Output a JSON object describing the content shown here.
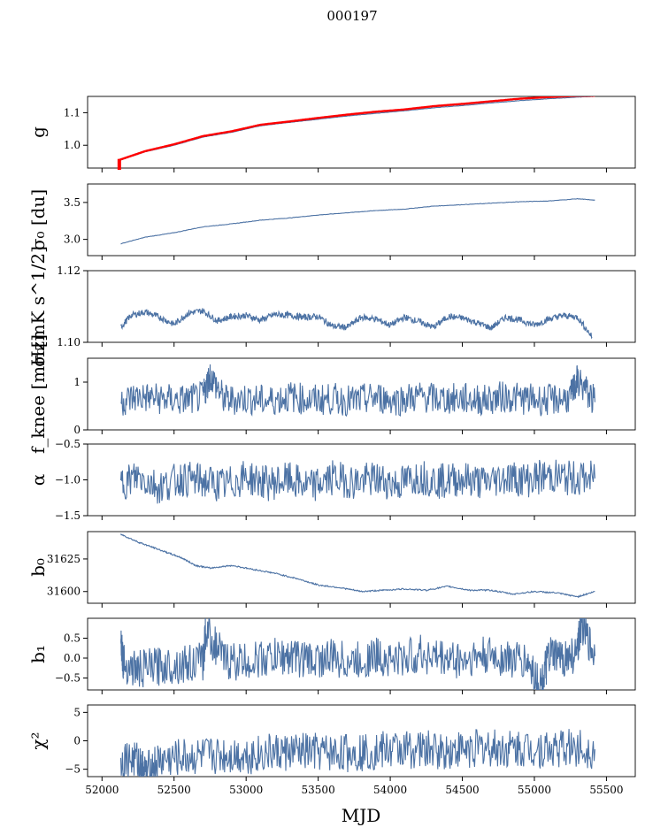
{
  "figure": {
    "suptitle": "000197",
    "xlabel": "MJD",
    "series_color": "#4c72a4",
    "highlight_color": "#ff0000"
  },
  "chart_data": [
    {
      "type": "line",
      "ylabel": "g",
      "xlim": [
        51900,
        55700
      ],
      "ylim": [
        0.93,
        1.15
      ],
      "yticks": [
        1.0,
        1.1
      ],
      "ytick_labels": [
        "1.0",
        "1.1"
      ],
      "series": [
        {
          "values_x": [
            52130,
            52300,
            52500,
            52700,
            52900,
            53100,
            53300,
            53500,
            53700,
            53900,
            54100,
            54300,
            54500,
            54700,
            54900,
            55100,
            55300,
            55420
          ],
          "values_y": [
            0.955,
            0.98,
            1.0,
            1.025,
            1.04,
            1.06,
            1.07,
            1.08,
            1.09,
            1.098,
            1.106,
            1.115,
            1.122,
            1.13,
            1.137,
            1.143,
            1.148,
            1.15
          ]
        },
        {
          "name": "",
          "color": "#ff0000",
          "values_x": [
            52120,
            52300,
            52500,
            52700,
            52900,
            53100,
            53300,
            53500,
            53700,
            53900,
            54100,
            54300,
            54500,
            54700,
            54900,
            55100,
            55300,
            55420
          ],
          "values_y": [
            0.955,
            0.982,
            1.003,
            1.028,
            1.043,
            1.063,
            1.073,
            1.084,
            1.094,
            1.103,
            1.11,
            1.12,
            1.127,
            1.135,
            1.143,
            1.148,
            1.152,
            1.152
          ]
        }
      ]
    },
    {
      "type": "line",
      "ylabel": "σ₀ [du]",
      "xlim": [
        51900,
        55700
      ],
      "ylim": [
        2.78,
        3.75
      ],
      "yticks": [
        3.0,
        3.5
      ],
      "ytick_labels": [
        "3.0",
        "3.5"
      ],
      "series": [
        {
          "values_x": [
            52130,
            52300,
            52500,
            52700,
            52900,
            53100,
            53300,
            53500,
            53700,
            53900,
            54100,
            54300,
            54500,
            54700,
            54900,
            55100,
            55300,
            55420
          ],
          "values_y": [
            2.94,
            3.03,
            3.09,
            3.17,
            3.21,
            3.26,
            3.29,
            3.33,
            3.36,
            3.39,
            3.41,
            3.45,
            3.47,
            3.49,
            3.51,
            3.52,
            3.55,
            3.53
          ]
        }
      ]
    },
    {
      "type": "line",
      "ylabel": "σ₀[mK s^1/2]",
      "xlim": [
        51900,
        55700
      ],
      "ylim": [
        1.1,
        1.12
      ],
      "yticks": [
        1.1,
        1.12
      ],
      "ytick_labels": [
        "1.10",
        "1.12"
      ],
      "series": [
        {
          "values_x": [
            52130,
            52200,
            52300,
            52400,
            52500,
            52600,
            52700,
            52800,
            52900,
            53000,
            53100,
            53200,
            53300,
            53400,
            53500,
            53600,
            53700,
            53800,
            53900,
            54000,
            54100,
            54200,
            54300,
            54400,
            54500,
            54600,
            54700,
            54800,
            54900,
            55000,
            55100,
            55200,
            55300,
            55400
          ],
          "values_y": [
            1.1042,
            1.1075,
            1.1085,
            1.107,
            1.105,
            1.1082,
            1.1088,
            1.106,
            1.1072,
            1.1075,
            1.1062,
            1.1078,
            1.1075,
            1.107,
            1.1072,
            1.1045,
            1.1042,
            1.107,
            1.1065,
            1.1048,
            1.107,
            1.1058,
            1.1042,
            1.1072,
            1.1068,
            1.1055,
            1.104,
            1.107,
            1.1062,
            1.1048,
            1.1065,
            1.1075,
            1.107,
            1.1015
          ]
        }
      ]
    },
    {
      "type": "line",
      "ylabel": "f_knee [mHz]",
      "xlim": [
        51900,
        55700
      ],
      "ylim": [
        0,
        1.5
      ],
      "yticks": [
        0,
        1
      ],
      "ytick_labels": [
        "0",
        "1"
      ],
      "series": [
        {
          "values_x": [
            52130,
            52250,
            52400,
            52550,
            52700,
            52750,
            52850,
            53000,
            53150,
            53300,
            53450,
            53600,
            53750,
            53900,
            54050,
            54200,
            54350,
            54500,
            54650,
            54800,
            54950,
            55100,
            55250,
            55300,
            55420
          ],
          "values_y": [
            0.6,
            0.7,
            0.65,
            0.62,
            0.68,
            1.15,
            0.62,
            0.66,
            0.6,
            0.7,
            0.62,
            0.65,
            0.6,
            0.68,
            0.62,
            0.7,
            0.64,
            0.66,
            0.62,
            0.7,
            0.64,
            0.62,
            0.68,
            1.05,
            0.58
          ]
        }
      ]
    },
    {
      "type": "line",
      "ylabel": "α",
      "xlim": [
        51900,
        55700
      ],
      "ylim": [
        -1.5,
        -0.5
      ],
      "yticks": [
        -1.5,
        -1.0,
        -0.5
      ],
      "ytick_labels": [
        "−1.5",
        "−1.0",
        "−0.5"
      ],
      "series": [
        {
          "values_x": [
            52130,
            52250,
            52400,
            52550,
            52700,
            52850,
            53000,
            53150,
            53300,
            53450,
            53600,
            53750,
            53900,
            54050,
            54200,
            54350,
            54500,
            54650,
            54800,
            54950,
            55100,
            55250,
            55420
          ],
          "values_y": [
            -1.05,
            -0.95,
            -1.1,
            -0.98,
            -1.02,
            -1.08,
            -0.96,
            -1.05,
            -1.0,
            -1.1,
            -0.97,
            -1.03,
            -0.99,
            -1.06,
            -0.95,
            -1.02,
            -0.98,
            -1.04,
            -0.96,
            -1.0,
            -0.94,
            -0.98,
            -0.98
          ]
        }
      ]
    },
    {
      "type": "line",
      "ylabel": "b₀",
      "xlim": [
        51900,
        55700
      ],
      "ylim": [
        31591,
        31646
      ],
      "yticks": [
        31600,
        31625
      ],
      "ytick_labels": [
        "31600",
        "31625"
      ],
      "series": [
        {
          "values_x": [
            52130,
            52250,
            52350,
            52450,
            52550,
            52650,
            52750,
            52900,
            53050,
            53200,
            53350,
            53500,
            53650,
            53800,
            53950,
            54100,
            54250,
            54400,
            54550,
            54700,
            54850,
            55000,
            55150,
            55300,
            55420
          ],
          "values_y": [
            31644,
            31638,
            31634,
            31630,
            31626,
            31620,
            31618,
            31620,
            31617,
            31614,
            31610,
            31605,
            31603,
            31600,
            31601,
            31602,
            31601,
            31604,
            31601,
            31601,
            31598,
            31600,
            31599,
            31596,
            31600
          ]
        }
      ]
    },
    {
      "type": "line",
      "ylabel": "b₁",
      "xlim": [
        51900,
        55700
      ],
      "ylim": [
        -0.8,
        1.0
      ],
      "yticks": [
        -0.5,
        0.0,
        0.5
      ],
      "ytick_labels": [
        "−0.5",
        "0.0",
        "0.5"
      ],
      "series": [
        {
          "values_x": [
            52130,
            52150,
            52250,
            52400,
            52550,
            52700,
            52720,
            52850,
            53000,
            53150,
            53300,
            53450,
            53600,
            53750,
            53900,
            54050,
            54200,
            54350,
            54500,
            54650,
            54800,
            54950,
            55050,
            55100,
            55200,
            55300,
            55320,
            55420
          ],
          "values_y": [
            0.55,
            -0.15,
            -0.3,
            -0.2,
            -0.15,
            -0.1,
            0.7,
            -0.05,
            -0.1,
            0.0,
            0.05,
            -0.05,
            0.0,
            -0.1,
            0.05,
            -0.05,
            0.1,
            0.0,
            -0.05,
            0.05,
            0.0,
            -0.1,
            -0.7,
            0.05,
            0.0,
            0.1,
            0.9,
            0.05
          ]
        }
      ]
    },
    {
      "type": "line",
      "ylabel": "χ²",
      "xlim": [
        51900,
        55700
      ],
      "ylim": [
        -6.3,
        6.3
      ],
      "yticks": [
        -5,
        0,
        5
      ],
      "ytick_labels": [
        "−5",
        "0",
        "5"
      ],
      "series": [
        {
          "values_x": [
            52130,
            52250,
            52300,
            52400,
            52550,
            52700,
            52850,
            53000,
            53150,
            53300,
            53450,
            53600,
            53750,
            53900,
            54050,
            54200,
            54350,
            54500,
            54650,
            54800,
            54950,
            55100,
            55250,
            55420
          ],
          "values_y": [
            -3,
            -3.5,
            -5.5,
            -3.5,
            -3,
            -2.8,
            -2.5,
            -2.5,
            -2.2,
            -2,
            -2,
            -2.2,
            -2,
            -1.8,
            -1.5,
            -1.5,
            -1.8,
            -1.5,
            -1.2,
            -1.5,
            -1.3,
            -1.5,
            -1.2,
            -1.5
          ]
        }
      ]
    }
  ],
  "xaxis": {
    "xlim": [
      51900,
      55700
    ],
    "ticks": [
      52000,
      52500,
      53000,
      53500,
      54000,
      54500,
      55000,
      55500
    ],
    "tick_labels": [
      "52000",
      "52500",
      "53000",
      "53500",
      "54000",
      "54500",
      "55000",
      "55500"
    ]
  }
}
